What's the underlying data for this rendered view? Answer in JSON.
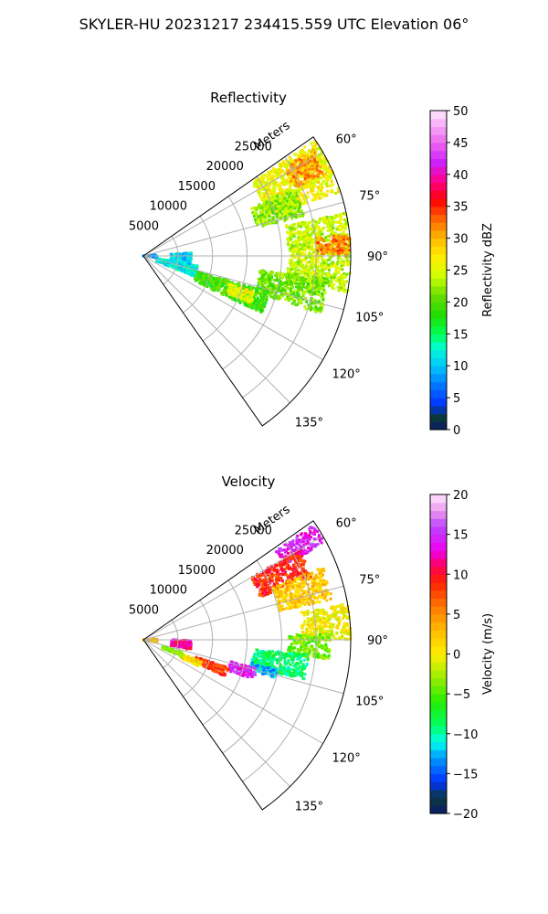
{
  "figure": {
    "suptitle": "SKYLER-HU  20231217  234415.559 UTC Elevation 06°"
  },
  "chart_data": [
    {
      "type": "polar-sector",
      "title": "Reflectivity",
      "range_label": "Meters",
      "theta_range_deg": [
        55,
        145
      ],
      "r_range_m": [
        0,
        30000
      ],
      "theta_ticks_deg": [
        60,
        75,
        90,
        105,
        120,
        135
      ],
      "theta_tick_labels": [
        "60°",
        "75°",
        "90°",
        "105°",
        "120°",
        "135°"
      ],
      "r_ticks_m": [
        5000,
        10000,
        15000,
        20000,
        25000
      ],
      "r_tick_labels": [
        "5000",
        "10000",
        "15000",
        "20000",
        "25000"
      ],
      "grid": true,
      "colorbar": {
        "label": "Reflectivity dBZ",
        "range": [
          0,
          50
        ],
        "ticks": [
          0,
          5,
          10,
          15,
          20,
          25,
          30,
          35,
          40,
          45,
          50
        ],
        "tick_labels": [
          "0",
          "5",
          "10",
          "15",
          "20",
          "25",
          "30",
          "35",
          "40",
          "45",
          "50"
        ],
        "colormap_stops": [
          {
            "v": 0,
            "color": "#0d1a6b"
          },
          {
            "v": 2,
            "color": "#0a3a3a"
          },
          {
            "v": 4,
            "color": "#0033ff"
          },
          {
            "v": 7,
            "color": "#0077ff"
          },
          {
            "v": 10,
            "color": "#00c8ff"
          },
          {
            "v": 13,
            "color": "#00ffcc"
          },
          {
            "v": 15,
            "color": "#00ff55"
          },
          {
            "v": 18,
            "color": "#22dd00"
          },
          {
            "v": 21,
            "color": "#66dd00"
          },
          {
            "v": 24,
            "color": "#ccff00"
          },
          {
            "v": 27,
            "color": "#ffee00"
          },
          {
            "v": 30,
            "color": "#ffbb00"
          },
          {
            "v": 33,
            "color": "#ff6600"
          },
          {
            "v": 36,
            "color": "#ff0000"
          },
          {
            "v": 39,
            "color": "#ff0088"
          },
          {
            "v": 42,
            "color": "#cc22ff"
          },
          {
            "v": 45,
            "color": "#ee66ee"
          },
          {
            "v": 50,
            "color": "#ffe8ff"
          }
        ]
      },
      "echo_regions": [
        {
          "theta": [
            56,
            72
          ],
          "r": [
            19000,
            30000
          ],
          "value": 26
        },
        {
          "theta": [
            58,
            66
          ],
          "r": [
            24000,
            29000
          ],
          "value": 31
        },
        {
          "theta": [
            66,
            76
          ],
          "r": [
            17000,
            24000
          ],
          "value": 22
        },
        {
          "theta": [
            78,
            100
          ],
          "r": [
            21000,
            30000
          ],
          "value": 24
        },
        {
          "theta": [
            84,
            90
          ],
          "r": [
            25000,
            30000
          ],
          "value": 32
        },
        {
          "theta": [
            97,
            108
          ],
          "r": [
            17000,
            27000
          ],
          "value": 21
        },
        {
          "theta": [
            106,
            116
          ],
          "r": [
            8000,
            19000
          ],
          "value": 19
        },
        {
          "theta": [
            108,
            114
          ],
          "r": [
            13000,
            17000
          ],
          "value": 26
        },
        {
          "theta": [
            100,
            112
          ],
          "r": [
            2000,
            8000
          ],
          "value": 12
        },
        {
          "theta": [
            84,
            96
          ],
          "r": [
            0,
            2000
          ],
          "value": 9
        },
        {
          "theta": [
            86,
            102
          ],
          "r": [
            4000,
            7000
          ],
          "value": 11
        }
      ]
    },
    {
      "type": "polar-sector",
      "title": "Velocity",
      "range_label": "Meters",
      "theta_range_deg": [
        55,
        145
      ],
      "r_range_m": [
        0,
        30000
      ],
      "theta_ticks_deg": [
        60,
        75,
        90,
        105,
        120,
        135
      ],
      "theta_tick_labels": [
        "60°",
        "75°",
        "90°",
        "105°",
        "120°",
        "135°"
      ],
      "r_ticks_m": [
        5000,
        10000,
        15000,
        20000,
        25000
      ],
      "r_tick_labels": [
        "5000",
        "10000",
        "15000",
        "20000",
        "25000"
      ],
      "grid": true,
      "colorbar": {
        "label": "Velocity (m/s)",
        "range": [
          -20,
          20
        ],
        "ticks": [
          -20,
          -15,
          -10,
          -5,
          0,
          5,
          10,
          15,
          20
        ],
        "tick_labels": [
          "−20",
          "−15",
          "−10",
          "−5",
          "0",
          "5",
          "10",
          "15",
          "20"
        ],
        "colormap_stops": [
          {
            "v": -20,
            "color": "#0d1a6b"
          },
          {
            "v": -18,
            "color": "#0a3a3a"
          },
          {
            "v": -16,
            "color": "#0033ff"
          },
          {
            "v": -13,
            "color": "#0099ff"
          },
          {
            "v": -11,
            "color": "#00ffee"
          },
          {
            "v": -9,
            "color": "#00ff66"
          },
          {
            "v": -6,
            "color": "#22ee00"
          },
          {
            "v": -3,
            "color": "#99ee00"
          },
          {
            "v": 0,
            "color": "#ffee00"
          },
          {
            "v": 3,
            "color": "#ffbb00"
          },
          {
            "v": 6,
            "color": "#ff7700"
          },
          {
            "v": 9,
            "color": "#ff2200"
          },
          {
            "v": 11,
            "color": "#ff0055"
          },
          {
            "v": 13,
            "color": "#ee00ee"
          },
          {
            "v": 16,
            "color": "#bb44ff"
          },
          {
            "v": 18,
            "color": "#ee99ee"
          },
          {
            "v": 20,
            "color": "#ffe8ff"
          }
        ]
      },
      "echo_regions": [
        {
          "theta": [
            56,
            62
          ],
          "r": [
            23000,
            30000
          ],
          "value": 14
        },
        {
          "theta": [
            60,
            70
          ],
          "r": [
            18000,
            26000
          ],
          "value": 9
        },
        {
          "theta": [
            68,
            78
          ],
          "r": [
            20000,
            28000
          ],
          "value": 2
        },
        {
          "theta": [
            80,
            90
          ],
          "r": [
            23000,
            30000
          ],
          "value": 0
        },
        {
          "theta": [
            88,
            96
          ],
          "r": [
            21000,
            27000
          ],
          "value": -4
        },
        {
          "theta": [
            95,
            104
          ],
          "r": [
            16000,
            24000
          ],
          "value": -9
        },
        {
          "theta": [
            102,
            106
          ],
          "r": [
            16000,
            20000
          ],
          "value": -13
        },
        {
          "theta": [
            104,
            110
          ],
          "r": [
            13000,
            17000
          ],
          "value": 14
        },
        {
          "theta": [
            108,
            114
          ],
          "r": [
            8000,
            13000
          ],
          "value": 8
        },
        {
          "theta": [
            110,
            116
          ],
          "r": [
            6000,
            9000
          ],
          "value": 1
        },
        {
          "theta": [
            108,
            114
          ],
          "r": [
            3000,
            6000
          ],
          "value": -4
        },
        {
          "theta": [
            86,
            100
          ],
          "r": [
            0,
            2000
          ],
          "value": 3
        },
        {
          "theta": [
            90,
            102
          ],
          "r": [
            4000,
            7000
          ],
          "value": 12
        }
      ]
    }
  ]
}
